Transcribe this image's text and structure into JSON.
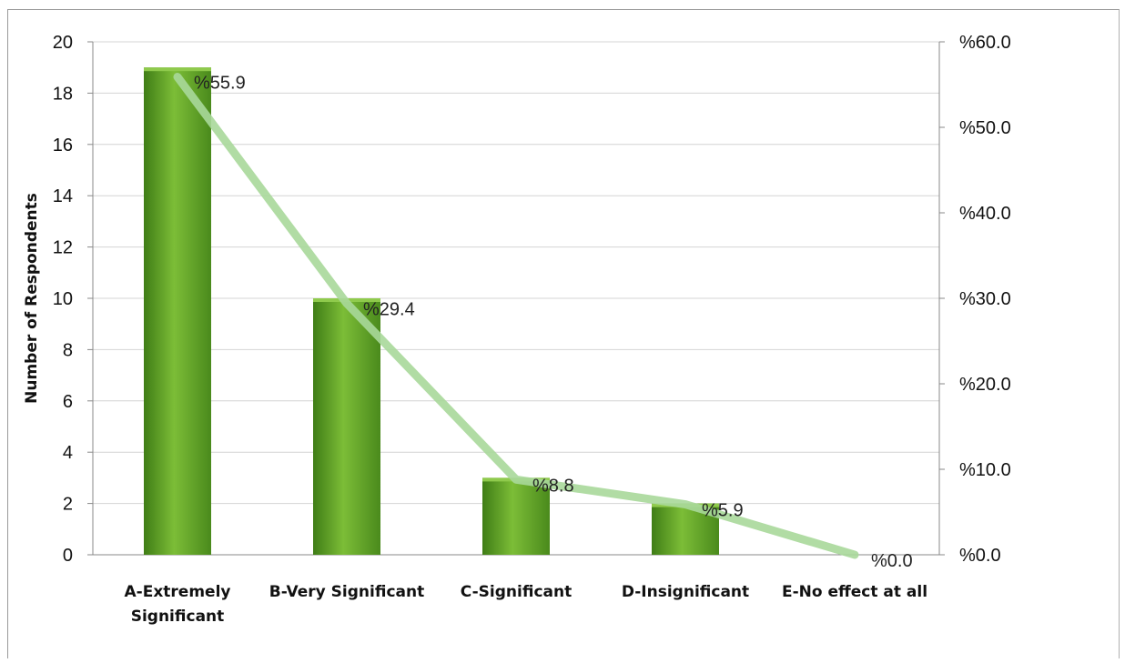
{
  "chart_data": {
    "type": "bar",
    "categories": [
      [
        "A-Extremely",
        "Significant"
      ],
      [
        "B-Very Significant"
      ],
      [
        "C-Significant"
      ],
      [
        "D-Insignificant"
      ],
      [
        "E-No effect at all"
      ]
    ],
    "series": [
      {
        "type": "bar",
        "axis": "left",
        "values": [
          19,
          10,
          3,
          2,
          0
        ],
        "color": "#6aa82c"
      },
      {
        "type": "line",
        "axis": "right",
        "values": [
          55.9,
          29.4,
          8.8,
          5.9,
          0.0
        ],
        "labels": [
          "%55.9",
          "%29.4",
          "%8.8",
          "%5.9",
          "%0.0"
        ],
        "color": "#a8d89a"
      }
    ],
    "ylabel": "Number of Respondents",
    "ylim": [
      0,
      20
    ],
    "yticks": [
      "0",
      "2",
      "4",
      "6",
      "8",
      "10",
      "12",
      "14",
      "16",
      "18",
      "20"
    ],
    "y2lim": [
      0,
      60
    ],
    "y2ticks": [
      "%0.0",
      "%10.0",
      "%20.0",
      "%30.0",
      "%40.0",
      "%50.0",
      "%60.0"
    ],
    "grid": true
  }
}
